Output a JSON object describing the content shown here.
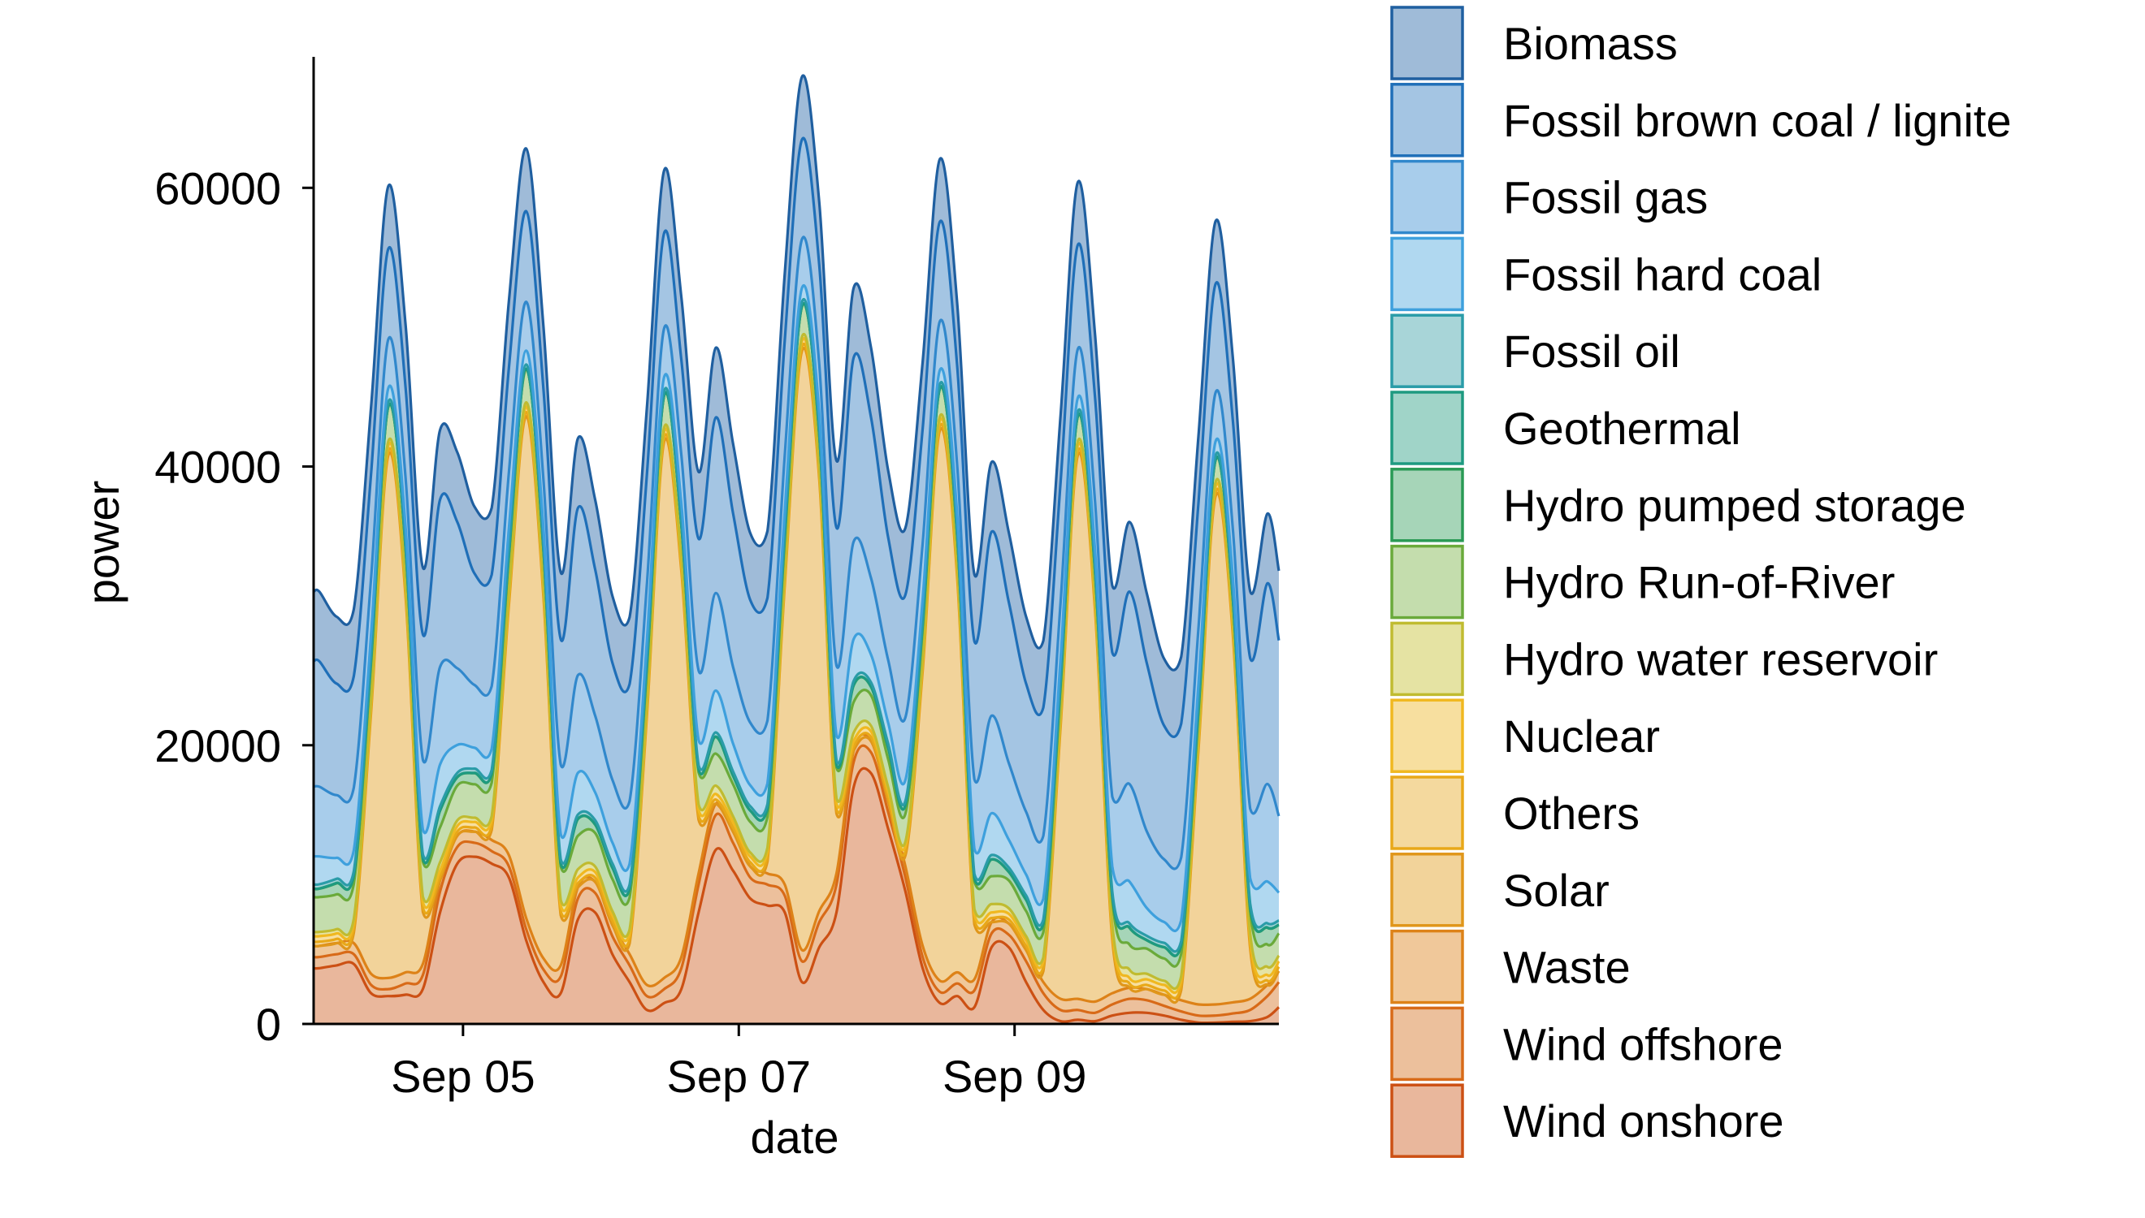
{
  "chart_data": {
    "type": "area",
    "stacked": true,
    "title": "",
    "xlabel": "date",
    "ylabel": "power",
    "x_unit": "hours",
    "xlim": [
      0,
      168
    ],
    "ylim": [
      0,
      69400
    ],
    "grid": false,
    "legend_position": "outside-right",
    "yticks": [
      {
        "value": 0,
        "label": "0"
      },
      {
        "value": 20000,
        "label": "20000"
      },
      {
        "value": 40000,
        "label": "40000"
      },
      {
        "value": 60000,
        "label": "60000"
      }
    ],
    "xticks": [
      {
        "value": 26,
        "label": "Sep 05"
      },
      {
        "value": 74,
        "label": "Sep 07"
      },
      {
        "value": 122,
        "label": "Sep 09"
      }
    ],
    "x": [
      0,
      1,
      4,
      7,
      10,
      13,
      16,
      19,
      22,
      25,
      28,
      31,
      34,
      37,
      40,
      43,
      46,
      49,
      52,
      55,
      58,
      61,
      64,
      67,
      70,
      73,
      76,
      79,
      82,
      85,
      88,
      91,
      94,
      97,
      100,
      103,
      106,
      109,
      112,
      115,
      118,
      121,
      124,
      127,
      130,
      133,
      136,
      139,
      142,
      145,
      148,
      151,
      154,
      157,
      160,
      163,
      166,
      168
    ],
    "series": [
      {
        "name": "Wind onshore",
        "fill": "#e9b79c",
        "line": "#cc5014",
        "values": [
          4000,
          4000,
          4200,
          4300,
          2200,
          2000,
          2100,
          2500,
          8000,
          11500,
          12000,
          11500,
          10500,
          6000,
          3000,
          2200,
          7500,
          8000,
          5000,
          3000,
          1000,
          1500,
          2500,
          8000,
          12500,
          11000,
          9000,
          8500,
          8000,
          3000,
          5500,
          8000,
          17000,
          18000,
          14000,
          9500,
          4000,
          1500,
          2000,
          1200,
          5500,
          5500,
          3000,
          1000,
          200,
          300,
          200,
          600,
          800,
          800,
          600,
          300,
          100,
          100,
          150,
          200,
          500,
          1200
        ]
      },
      {
        "name": "Wind offshore",
        "fill": "#ecc09c",
        "line": "#d86a18",
        "values": [
          800,
          800,
          800,
          700,
          600,
          500,
          800,
          1000,
          1500,
          1200,
          1000,
          900,
          800,
          800,
          900,
          1200,
          1500,
          1400,
          1300,
          1200,
          1000,
          1000,
          1500,
          2000,
          2500,
          2000,
          1500,
          1500,
          1200,
          1500,
          1800,
          2000,
          1800,
          1500,
          1200,
          1000,
          800,
          800,
          900,
          1200,
          1000,
          900,
          1500,
          1200,
          800,
          700,
          600,
          800,
          1000,
          900,
          700,
          600,
          500,
          500,
          600,
          800,
          1500,
          1800
        ]
      },
      {
        "name": "Waste",
        "fill": "#f0c89a",
        "line": "#dd8218",
        "values": [
          800,
          800,
          800,
          800,
          800,
          800,
          800,
          800,
          800,
          800,
          800,
          800,
          800,
          800,
          800,
          800,
          800,
          800,
          800,
          800,
          800,
          800,
          800,
          800,
          800,
          800,
          800,
          800,
          800,
          800,
          800,
          800,
          800,
          800,
          800,
          800,
          800,
          800,
          800,
          800,
          800,
          800,
          800,
          800,
          800,
          800,
          800,
          800,
          800,
          800,
          800,
          800,
          800,
          800,
          800,
          800,
          800,
          800
        ]
      },
      {
        "name": "Solar",
        "fill": "#f2d39a",
        "line": "#e0961a",
        "values": [
          0,
          0,
          0,
          750,
          18750,
          37500,
          27000,
          3750,
          0,
          0,
          0,
          720,
          18000,
          36000,
          25900,
          3600,
          0,
          0,
          0,
          770,
          19250,
          38500,
          27700,
          3850,
          0,
          0,
          0,
          860,
          21500,
          43000,
          31000,
          4300,
          0,
          0,
          0,
          790,
          19750,
          39500,
          28400,
          3950,
          0,
          0,
          0,
          780,
          19500,
          39000,
          28100,
          3900,
          0,
          0,
          0,
          730,
          18250,
          36500,
          26300,
          3650,
          0,
          0
        ]
      },
      {
        "name": "Others",
        "fill": "#f4d99e",
        "line": "#e8a818",
        "values": [
          300,
          300,
          300,
          300,
          300,
          300,
          300,
          300,
          300,
          300,
          300,
          300,
          300,
          300,
          300,
          300,
          300,
          300,
          300,
          300,
          300,
          300,
          300,
          300,
          300,
          300,
          300,
          300,
          300,
          300,
          300,
          300,
          300,
          300,
          300,
          300,
          300,
          300,
          300,
          300,
          300,
          300,
          300,
          300,
          300,
          300,
          300,
          300,
          300,
          300,
          300,
          300,
          300,
          300,
          300,
          300,
          300,
          300
        ]
      },
      {
        "name": "Nuclear",
        "fill": "#f7df9f",
        "line": "#f0b820",
        "values": [
          400,
          400,
          400,
          400,
          400,
          400,
          400,
          400,
          400,
          400,
          400,
          400,
          400,
          400,
          400,
          400,
          400,
          400,
          400,
          400,
          400,
          400,
          400,
          400,
          400,
          400,
          400,
          400,
          400,
          400,
          400,
          400,
          400,
          400,
          400,
          400,
          400,
          400,
          400,
          400,
          400,
          400,
          400,
          400,
          400,
          400,
          400,
          400,
          400,
          400,
          400,
          400,
          400,
          400,
          400,
          400,
          400,
          400
        ]
      },
      {
        "name": "Hydro water reservoir",
        "fill": "#e5e3a3",
        "line": "#c0bb30",
        "values": [
          300,
          300,
          300,
          300,
          300,
          300,
          300,
          400,
          600,
          400,
          300,
          300,
          300,
          300,
          300,
          400,
          600,
          400,
          300,
          300,
          300,
          300,
          300,
          400,
          600,
          400,
          300,
          300,
          300,
          300,
          300,
          400,
          600,
          400,
          300,
          300,
          300,
          300,
          300,
          400,
          600,
          400,
          300,
          300,
          300,
          300,
          300,
          400,
          600,
          400,
          300,
          300,
          300,
          300,
          300,
          400,
          600,
          400
        ]
      },
      {
        "name": "Hydro Run-of-River",
        "fill": "#c4ddad",
        "line": "#6aaa3a",
        "values": [
          2500,
          2500,
          2500,
          2500,
          2500,
          2500,
          2500,
          2500,
          2500,
          2500,
          2400,
          2400,
          2400,
          2400,
          2400,
          2400,
          2400,
          2400,
          2300,
          2300,
          2300,
          2300,
          2300,
          2300,
          2300,
          2300,
          2200,
          2200,
          2200,
          2200,
          2200,
          2200,
          2200,
          2200,
          2000,
          2000,
          2000,
          2000,
          2000,
          2000,
          2000,
          2000,
          1800,
          1800,
          1800,
          1800,
          1800,
          1800,
          1800,
          1800,
          1600,
          1600,
          1600,
          1600,
          1600,
          1600,
          1600,
          1600
        ]
      },
      {
        "name": "Hydro pumped storage",
        "fill": "#a6d5b8",
        "line": "#2a9a55",
        "values": [
          600,
          600,
          800,
          600,
          300,
          0,
          0,
          200,
          1200,
          600,
          800,
          600,
          300,
          0,
          0,
          200,
          1200,
          600,
          800,
          600,
          300,
          0,
          0,
          200,
          1200,
          600,
          800,
          600,
          300,
          0,
          0,
          200,
          1200,
          600,
          800,
          600,
          300,
          0,
          0,
          200,
          1200,
          600,
          800,
          600,
          300,
          0,
          0,
          200,
          1200,
          600,
          800,
          600,
          300,
          0,
          0,
          200,
          1200,
          600
        ]
      },
      {
        "name": "Geothermal",
        "fill": "#a0d4c8",
        "line": "#1e9a80",
        "values": [
          20,
          20,
          20,
          20,
          20,
          20,
          20,
          20,
          20,
          20,
          20,
          20,
          20,
          20,
          20,
          20,
          20,
          20,
          20,
          20,
          20,
          20,
          20,
          20,
          20,
          20,
          20,
          20,
          20,
          20,
          20,
          20,
          20,
          20,
          20,
          20,
          20,
          20,
          20,
          20,
          20,
          20,
          20,
          20,
          20,
          20,
          20,
          20,
          20,
          20,
          20,
          20,
          20,
          20,
          20,
          20,
          20,
          20
        ]
      },
      {
        "name": "Fossil oil",
        "fill": "#a8d5d8",
        "line": "#2a9ca8",
        "values": [
          300,
          300,
          300,
          300,
          300,
          300,
          300,
          300,
          300,
          300,
          300,
          300,
          300,
          300,
          300,
          300,
          300,
          300,
          300,
          300,
          300,
          300,
          300,
          300,
          300,
          300,
          300,
          300,
          300,
          300,
          300,
          300,
          300,
          300,
          300,
          300,
          300,
          300,
          300,
          300,
          300,
          300,
          300,
          300,
          300,
          300,
          300,
          300,
          300,
          300,
          300,
          300,
          300,
          300,
          300,
          300,
          300,
          300
        ]
      },
      {
        "name": "Fossil hard coal",
        "fill": "#b0d8f0",
        "line": "#3ea0dd",
        "values": [
          2000,
          2000,
          1500,
          1500,
          1500,
          1000,
          1200,
          1800,
          3000,
          2000,
          1500,
          1500,
          1500,
          1000,
          1200,
          1800,
          3000,
          2000,
          1500,
          1500,
          1500,
          1000,
          1200,
          1800,
          3000,
          2000,
          1500,
          1500,
          1500,
          1000,
          1200,
          1800,
          3000,
          2000,
          1500,
          1500,
          1500,
          1000,
          1200,
          1800,
          3000,
          2000,
          1500,
          1500,
          1500,
          1000,
          1200,
          1800,
          3000,
          2000,
          1500,
          1500,
          1500,
          1000,
          1200,
          1800,
          3000,
          2000
        ]
      },
      {
        "name": "Fossil gas",
        "fill": "#a8cdeb",
        "line": "#3188cc",
        "values": [
          5000,
          5000,
          4500,
          4500,
          4000,
          3500,
          3500,
          5000,
          7000,
          5500,
          4500,
          4500,
          4000,
          3500,
          3500,
          5000,
          7000,
          5500,
          4500,
          4500,
          4000,
          3500,
          3500,
          5000,
          7000,
          5500,
          4500,
          4500,
          4000,
          3500,
          3500,
          5000,
          7000,
          5500,
          4500,
          4500,
          4000,
          3500,
          3500,
          5000,
          7000,
          5500,
          4500,
          4500,
          4000,
          3500,
          3500,
          5000,
          7000,
          5500,
          4500,
          4500,
          4000,
          3500,
          3500,
          5000,
          7000,
          5500
        ]
      },
      {
        "name": "Fossil brown coal / lignite",
        "fill": "#a4c5e3",
        "line": "#1f6fb8",
        "values": [
          9000,
          9000,
          8000,
          8000,
          7500,
          6500,
          6500,
          9000,
          12000,
          10500,
          8000,
          8000,
          7500,
          6500,
          6500,
          9000,
          12000,
          10500,
          8400,
          8400,
          7880,
          6830,
          6830,
          9450,
          12600,
          11030,
          8800,
          8800,
          8250,
          7150,
          7150,
          9900,
          13200,
          11550,
          8800,
          8800,
          8250,
          7150,
          7150,
          9900,
          13200,
          11550,
          9200,
          9200,
          8630,
          7480,
          7480,
          10350,
          13800,
          12080,
          9600,
          9600,
          9000,
          7800,
          7800,
          10800,
          14400,
          12600
        ]
      },
      {
        "name": "Biomass",
        "fill": "#9fbbd8",
        "line": "#1f5fa0",
        "values": [
          5000,
          5000,
          4800,
          4800,
          4800,
          4500,
          4500,
          4800,
          5000,
          5000,
          4800,
          4800,
          4800,
          4500,
          4500,
          4800,
          5000,
          5000,
          4800,
          4800,
          4800,
          4500,
          4500,
          4800,
          5000,
          5000,
          4800,
          4800,
          4800,
          4500,
          4500,
          4800,
          5000,
          5000,
          4800,
          4800,
          4800,
          4500,
          4500,
          4800,
          5000,
          5000,
          4800,
          4800,
          4800,
          4500,
          4500,
          4800,
          5000,
          5000,
          4800,
          4800,
          4800,
          4500,
          4500,
          4800,
          5000,
          5000
        ]
      }
    ]
  }
}
